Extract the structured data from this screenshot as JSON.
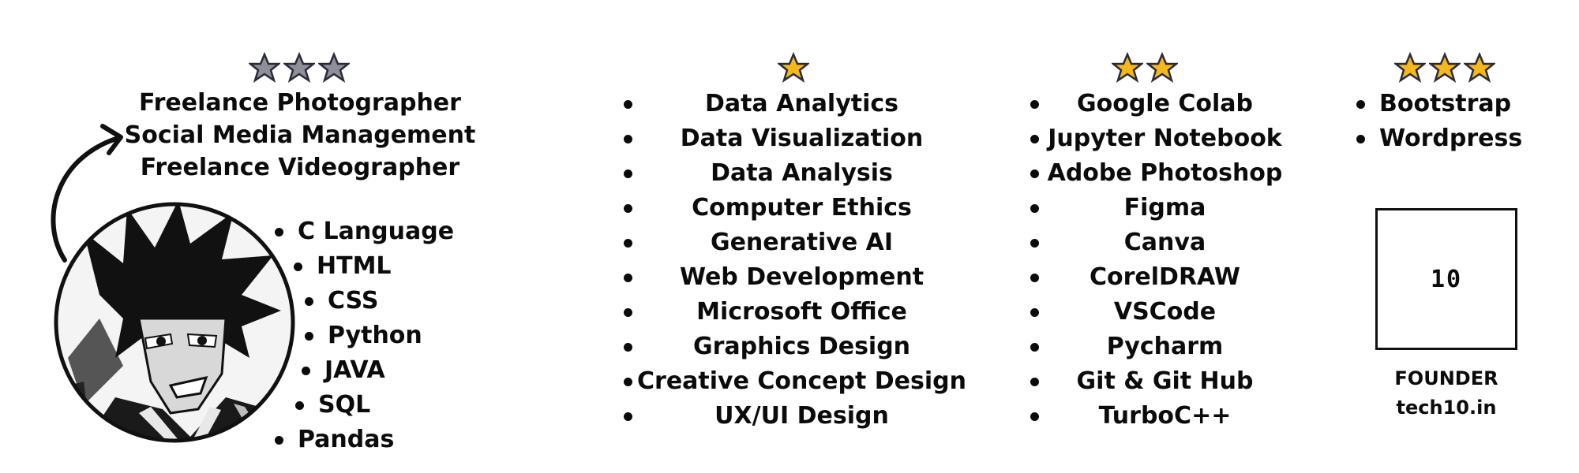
{
  "colors": {
    "text": "#0b0b0b",
    "star_gold": "#f5b81c",
    "star_silver": "#8e8f99"
  },
  "columns": [
    {
      "stars": [
        "silver-star-icon",
        "silver-star-icon",
        "silver-star-icon"
      ],
      "roles": [
        "Freelance Photographer",
        "Social Media Management",
        "Freelance Videographer"
      ],
      "languages": [
        "C Language",
        "HTML",
        "CSS",
        "Python",
        "JAVA",
        "SQL",
        "Pandas"
      ]
    },
    {
      "stars": [
        "gold-star-icon"
      ],
      "items": [
        "Data Analytics",
        "Data Visualization",
        "Data Analysis",
        "Computer Ethics",
        "Generative AI",
        "Web Development",
        "Microsoft Office",
        "Graphics Design",
        "Creative Concept Design",
        "UX/UI Design"
      ]
    },
    {
      "stars": [
        "gold-star-icon",
        "gold-star-icon"
      ],
      "items": [
        "Google Colab",
        "Jupyter Notebook",
        "Adobe Photoshop",
        "Figma",
        "Canva",
        "CorelDRAW",
        "VSCode",
        "Pycharm",
        "Git & Git Hub",
        "TurboC++"
      ]
    },
    {
      "stars": [
        "gold-star-icon",
        "gold-star-icon",
        "gold-star-icon"
      ],
      "items": [
        "Bootstrap",
        "Wordpress"
      ]
    }
  ],
  "logo": {
    "text": "10",
    "caption_line1": "FOUNDER",
    "caption_line2": "tech10.in"
  }
}
